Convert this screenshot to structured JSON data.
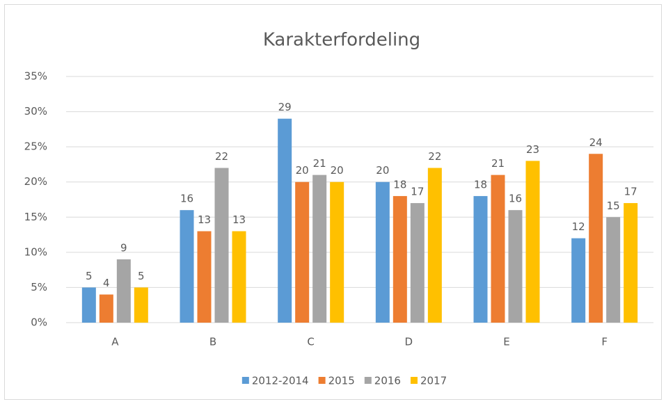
{
  "chart_data": {
    "type": "bar",
    "title": "Karakterfordeling",
    "categories": [
      "A",
      "B",
      "C",
      "D",
      "E",
      "F"
    ],
    "series": [
      {
        "name": "2012-2014",
        "color": "#5b9bd5",
        "values": [
          5,
          16,
          29,
          20,
          18,
          12
        ]
      },
      {
        "name": "2015",
        "color": "#ed7d31",
        "values": [
          4,
          13,
          20,
          18,
          21,
          24
        ]
      },
      {
        "name": "2016",
        "color": "#a5a5a5",
        "values": [
          9,
          22,
          21,
          17,
          16,
          15
        ]
      },
      {
        "name": "2017",
        "color": "#ffc000",
        "values": [
          5,
          13,
          20,
          22,
          23,
          17
        ]
      }
    ],
    "ylim": [
      0,
      35
    ],
    "yticks": [
      {
        "value": 0,
        "label": "0%"
      },
      {
        "value": 5,
        "label": "5%"
      },
      {
        "value": 10,
        "label": "10%"
      },
      {
        "value": 15,
        "label": "15%"
      },
      {
        "value": 20,
        "label": "20%"
      },
      {
        "value": 25,
        "label": "25%"
      },
      {
        "value": 30,
        "label": "30%"
      },
      {
        "value": 35,
        "label": "35%"
      }
    ],
    "grid": true,
    "legend": "bottom"
  }
}
